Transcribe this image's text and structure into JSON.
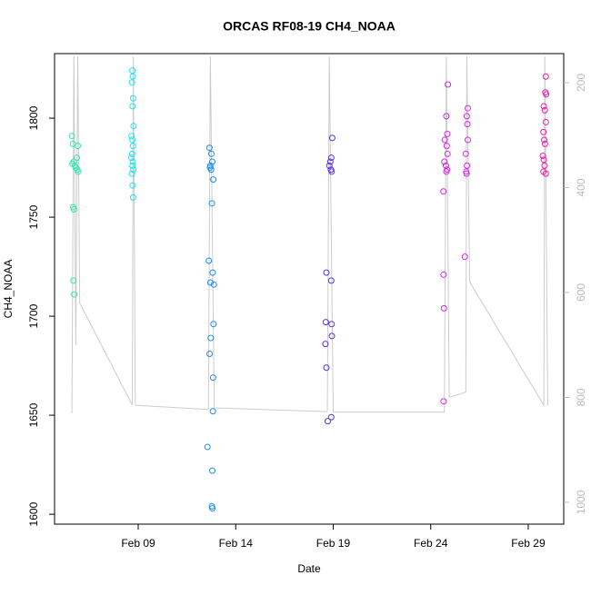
{
  "chart_data": {
    "type": "scatter",
    "title": "ORCAS RF08-19 CH4_NOAA",
    "xlabel": "Date",
    "ylabel": "CH4_NOAA",
    "xlim": [
      4.71,
      30.82
    ],
    "xticks": [
      {
        "value": 9,
        "label": "Feb 09"
      },
      {
        "value": 14,
        "label": "Feb 14"
      },
      {
        "value": 19,
        "label": "Feb 19"
      },
      {
        "value": 24,
        "label": "Feb 24"
      },
      {
        "value": 29,
        "label": "Feb 29"
      }
    ],
    "ylim": [
      1595,
      1832.6
    ],
    "yticks": [
      1600,
      1650,
      1700,
      1750,
      1800
    ],
    "y2lim": [
      1041.6,
      144.6
    ],
    "y2ticks": [
      200,
      400,
      600,
      800,
      1000
    ],
    "y2color": "#bbbbbb",
    "series": [
      {
        "color": "#2ee8b0",
        "x": [
          5.6,
          5.65,
          5.9,
          5.85,
          5.7,
          5.62,
          5.75,
          5.8,
          5.88,
          5.92,
          5.66,
          5.7,
          5.68,
          5.72
        ],
        "values": [
          1791,
          1787,
          1786,
          1780,
          1778,
          1777,
          1776,
          1775,
          1774,
          1773,
          1755,
          1754,
          1718,
          1711
        ]
      },
      {
        "color": "#18e6f0",
        "x": [
          8.7,
          8.72,
          8.68,
          8.74,
          8.71,
          8.76,
          8.66,
          8.7,
          8.73,
          8.69,
          8.65,
          8.72,
          8.7,
          8.75,
          8.68,
          8.71,
          8.74
        ],
        "values": [
          1824,
          1821,
          1818,
          1810,
          1806,
          1796,
          1791,
          1789,
          1786,
          1782,
          1780,
          1778,
          1776,
          1774,
          1772,
          1766,
          1760
        ]
      },
      {
        "color": "#1c8cf0",
        "x": [
          12.65,
          12.75,
          12.8,
          12.7,
          12.68,
          12.74,
          12.85,
          12.78,
          12.62,
          12.82,
          12.7,
          12.88,
          12.86,
          12.72,
          12.66,
          12.84,
          12.83,
          12.55,
          12.8,
          12.78,
          12.8
        ],
        "values": [
          1785,
          1782,
          1778,
          1776,
          1775,
          1774,
          1769,
          1757,
          1728,
          1722,
          1717,
          1716,
          1696,
          1689,
          1681,
          1669,
          1652,
          1634,
          1622,
          1604,
          1603
        ]
      },
      {
        "color": "#5a2ef0",
        "x": [
          18.95,
          18.9,
          18.85,
          18.8,
          18.88,
          18.92,
          18.65,
          18.9,
          18.62,
          18.92,
          18.93,
          18.6,
          18.65,
          18.9,
          18.72
        ],
        "values": [
          1790,
          1780,
          1778,
          1776,
          1774,
          1773,
          1722,
          1718,
          1697,
          1696,
          1690,
          1686,
          1674,
          1649,
          1647
        ]
      },
      {
        "color": "#d826e8",
        "x": [
          24.88,
          24.8,
          24.85,
          24.72,
          24.82,
          24.86,
          24.7,
          24.78,
          24.84,
          24.8,
          24.65,
          24.66,
          24.68,
          24.66,
          25.9,
          25.85,
          25.88,
          25.9,
          25.8,
          25.86,
          25.82,
          25.84,
          25.75
        ],
        "values": [
          1817,
          1801,
          1792,
          1789,
          1786,
          1782,
          1778,
          1776,
          1774,
          1773,
          1763,
          1721,
          1704,
          1657,
          1805,
          1801,
          1797,
          1789,
          1782,
          1776,
          1773,
          1772,
          1730
        ]
      },
      {
        "color": "#ee1aa8",
        "x": [
          29.9,
          29.88,
          29.92,
          29.8,
          29.85,
          29.9,
          29.78,
          29.82,
          29.86,
          29.75,
          29.8,
          29.84,
          29.78,
          29.9
        ],
        "values": [
          1821,
          1813,
          1812,
          1806,
          1804,
          1798,
          1793,
          1789,
          1787,
          1781,
          1779,
          1776,
          1773,
          1772
        ]
      },
      {
        "type": "line",
        "axis": "y2",
        "color": "#cccccc",
        "x": [
          5.6,
          5.7,
          5.8,
          5.9,
          6.0,
          8.7,
          8.75,
          8.85,
          12.6,
          12.7,
          12.9,
          18.7,
          18.8,
          19.0,
          24.7,
          24.8,
          24.95,
          25.8,
          25.85,
          26.0,
          29.8,
          29.85,
          30.0
        ],
        "values": [
          830,
          150,
          700,
          150,
          620,
          815,
          150,
          815,
          823,
          150,
          820,
          827,
          150,
          828,
          828,
          150,
          800,
          790,
          150,
          580,
          815,
          150,
          815
        ]
      }
    ]
  }
}
